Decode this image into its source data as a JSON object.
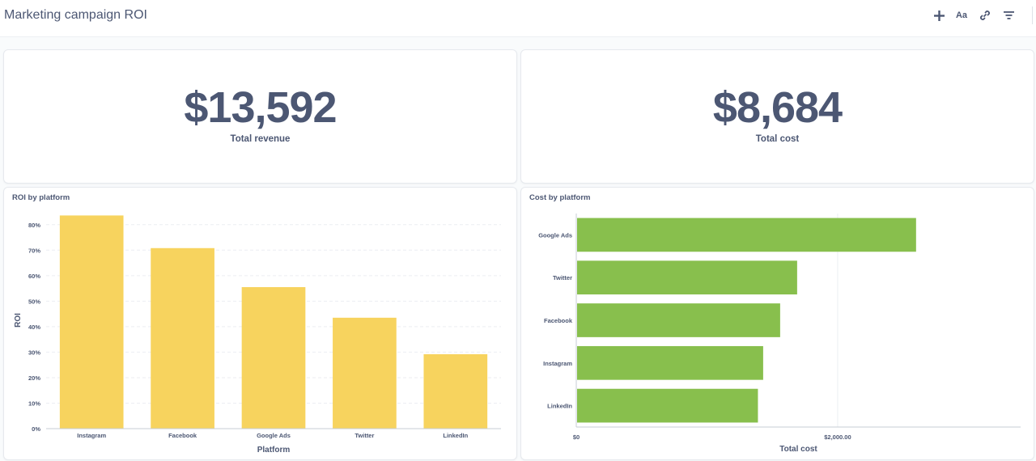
{
  "dashboard": {
    "title": "Marketing campaign ROI"
  },
  "toolbar": {
    "add_icon": "plus-icon",
    "text_label": "Aa",
    "link_icon": "link-icon",
    "filter_icon": "filter-icon"
  },
  "scalars": {
    "revenue": {
      "value": "$13,592",
      "label": "Total revenue"
    },
    "cost": {
      "value": "$8,684",
      "label": "Total cost"
    }
  },
  "colors": {
    "roi_bar": "#f7d35e",
    "cost_bar": "#88bf4d",
    "text": "#4c5773"
  },
  "chart_data": [
    {
      "type": "bar",
      "title": "ROI by platform",
      "categories": [
        "Instagram",
        "Facebook",
        "Google Ads",
        "Twitter",
        "LinkedIn"
      ],
      "values": [
        83.6,
        70.8,
        55.5,
        43.5,
        29.2
      ],
      "xlabel": "Platform",
      "ylabel": "ROI",
      "ylim": [
        0,
        85
      ],
      "yticks": [
        0,
        10,
        20,
        30,
        40,
        50,
        60,
        70,
        80
      ],
      "ytick_labels": [
        "0%",
        "10%",
        "20%",
        "30%",
        "40%",
        "50%",
        "60%",
        "70%",
        "80%"
      ],
      "grid": true
    },
    {
      "type": "bar",
      "orientation": "horizontal",
      "title": "Cost by platform",
      "categories": [
        "Google Ads",
        "Twitter",
        "Facebook",
        "Instagram",
        "LinkedIn"
      ],
      "values": [
        2600,
        1690,
        1560,
        1430,
        1390
      ],
      "xlabel": "Total cost",
      "ylabel": "",
      "xlim": [
        0,
        3400
      ],
      "xticks": [
        0,
        2000
      ],
      "xtick_labels": [
        "$0",
        "$2,000.00"
      ],
      "grid": true
    }
  ]
}
